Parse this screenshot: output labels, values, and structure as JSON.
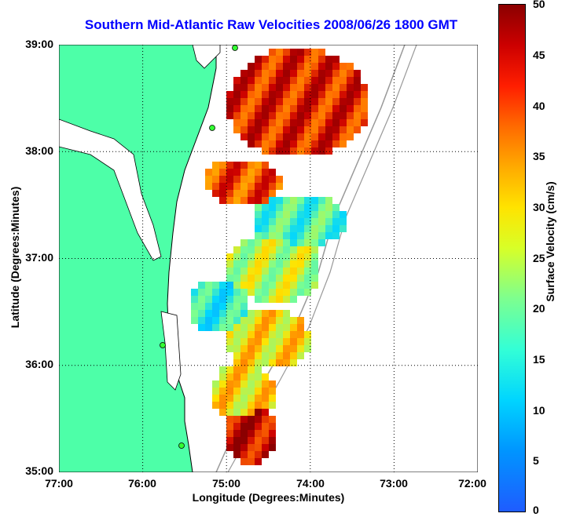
{
  "title": "Southern Mid-Atlantic Raw Velocities 2008/06/26 1800 GMT",
  "axes": {
    "xlabel": "Longitude (Degrees:Minutes)",
    "ylabel": "Latitude (Degrees:Minutes)",
    "x_ticks": [
      "77:00",
      "76:00",
      "75:00",
      "74:00",
      "73:00",
      "72:00"
    ],
    "y_ticks": [
      "39:00",
      "38:00",
      "37:00",
      "36:00",
      "35:00"
    ],
    "xlim": [
      -77,
      -72
    ],
    "ylim": [
      35,
      39
    ],
    "grid": "dotted"
  },
  "colorbar": {
    "label": "Surface Velocity (cm/s)",
    "ticks": [
      "50",
      "45",
      "40",
      "35",
      "30",
      "25",
      "20",
      "15",
      "10",
      "5",
      "0"
    ],
    "range": [
      0,
      50
    ],
    "colormap": "jet"
  },
  "colors": {
    "land": "#4dffa8",
    "coastline": "#000000",
    "title": "#0000ff",
    "station_marker": "#33ff33",
    "bathymetry": "#999999"
  }
}
